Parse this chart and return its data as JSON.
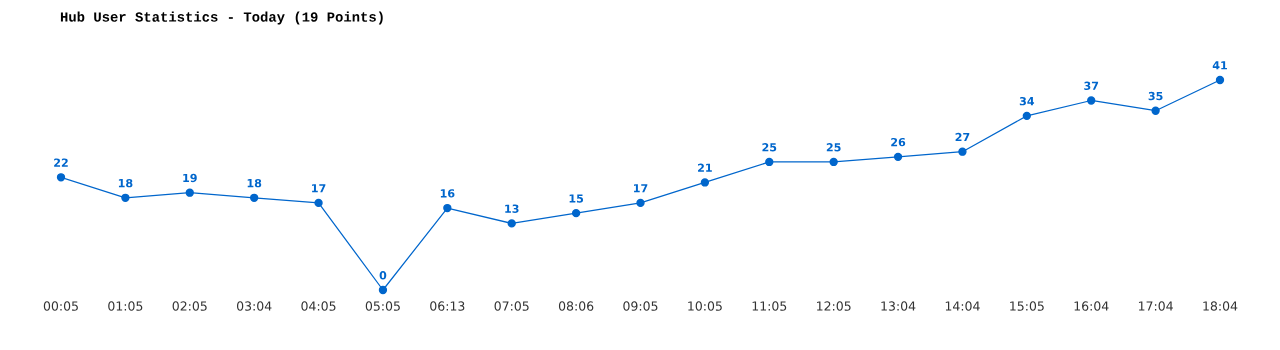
{
  "chart_data": {
    "type": "line",
    "title": "Hub User Statistics - Today (19 Points)",
    "categories": [
      "00:05",
      "01:05",
      "02:05",
      "03:04",
      "04:05",
      "05:05",
      "06:13",
      "07:05",
      "08:06",
      "09:05",
      "10:05",
      "11:05",
      "12:05",
      "13:04",
      "14:04",
      "15:05",
      "16:04",
      "17:04",
      "18:04"
    ],
    "series": [
      {
        "color": "#0066cc",
        "values": [
          22,
          18,
          19,
          18,
          17,
          0,
          16,
          13,
          15,
          17,
          21,
          25,
          25,
          26,
          27,
          34,
          37,
          35,
          41
        ]
      }
    ],
    "data_labels": true,
    "marker": "circle",
    "line_style": "solid",
    "grid": false,
    "legend": false
  }
}
